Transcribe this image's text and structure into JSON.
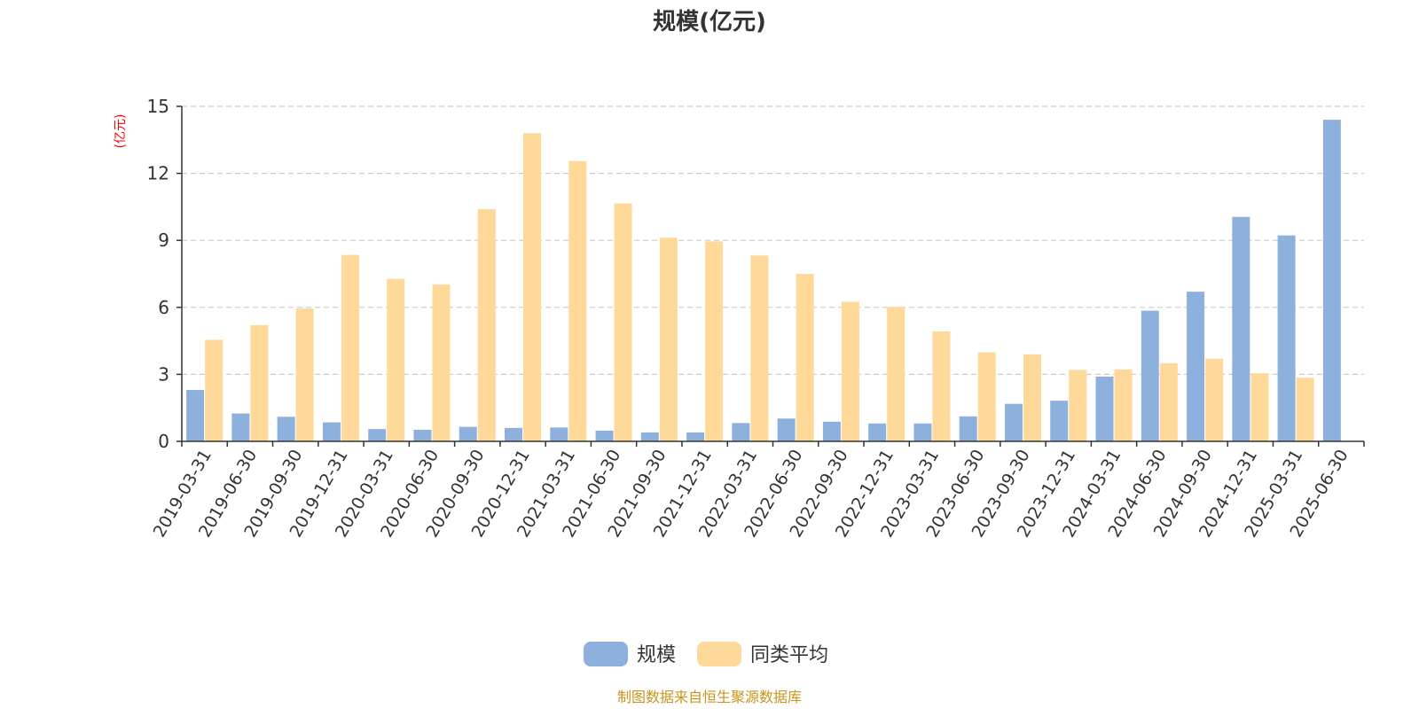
{
  "chart_data": {
    "type": "bar",
    "title": "规模(亿元)",
    "y_unit_label": "(亿元)",
    "ylim": [
      0,
      15
    ],
    "yticks": [
      0,
      3,
      6,
      9,
      12,
      15
    ],
    "grid": true,
    "legend_position": "bottom-center",
    "categories": [
      "2019-03-31",
      "2019-06-30",
      "2019-09-30",
      "2019-12-31",
      "2020-03-31",
      "2020-06-30",
      "2020-09-30",
      "2020-12-31",
      "2021-03-31",
      "2021-06-30",
      "2021-09-30",
      "2021-12-31",
      "2022-03-31",
      "2022-06-30",
      "2022-09-30",
      "2022-12-31",
      "2023-03-31",
      "2023-06-30",
      "2023-09-30",
      "2023-12-31",
      "2024-03-31",
      "2024-06-30",
      "2024-09-30",
      "2024-12-31",
      "2025-03-31",
      "2025-06-30"
    ],
    "series": [
      {
        "name": "规模",
        "color": "#8eb0dc",
        "values": [
          2.3,
          1.25,
          1.1,
          0.85,
          0.55,
          0.52,
          0.65,
          0.6,
          0.62,
          0.48,
          0.4,
          0.4,
          0.82,
          1.02,
          0.88,
          0.8,
          0.8,
          1.12,
          1.68,
          1.82,
          2.9,
          5.85,
          6.7,
          10.05,
          9.22,
          14.4
        ]
      },
      {
        "name": "同类平均",
        "color": "#ffd99a",
        "values": [
          4.55,
          5.2,
          5.95,
          8.35,
          7.28,
          7.02,
          10.4,
          13.8,
          12.55,
          10.65,
          9.12,
          8.95,
          8.32,
          7.5,
          6.25,
          6.02,
          4.92,
          3.98,
          3.9,
          3.2,
          3.22,
          3.5,
          3.7,
          3.05,
          2.85,
          null
        ]
      }
    ]
  },
  "footer": {
    "source": "制图数据来自恒生聚源数据库"
  }
}
